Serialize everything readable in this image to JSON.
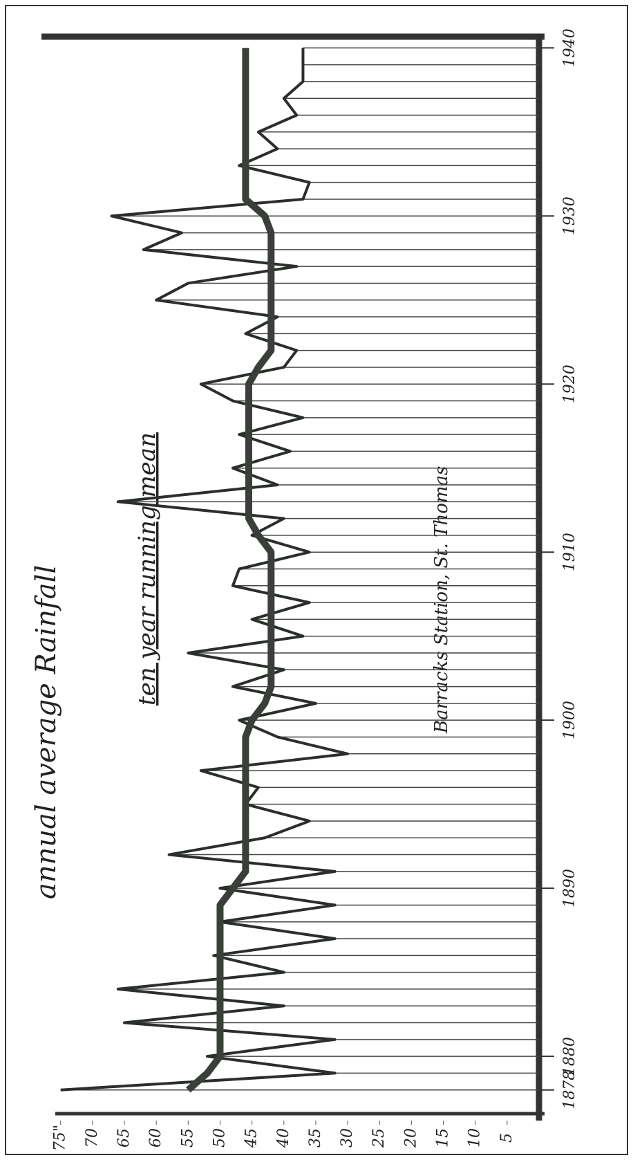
{
  "chart_data": {
    "type": "line",
    "title": "annual average Rainfall",
    "annotations": [
      "Barracks Station, St. Thomas"
    ],
    "x": [
      1878,
      1879,
      1880,
      1881,
      1882,
      1883,
      1884,
      1885,
      1886,
      1887,
      1888,
      1889,
      1890,
      1891,
      1892,
      1893,
      1894,
      1895,
      1896,
      1897,
      1898,
      1899,
      1900,
      1901,
      1902,
      1903,
      1904,
      1905,
      1906,
      1907,
      1908,
      1909,
      1910,
      1911,
      1912,
      1913,
      1914,
      1915,
      1916,
      1917,
      1918,
      1919,
      1920,
      1921,
      1922,
      1923,
      1924,
      1925,
      1926,
      1927,
      1928,
      1929,
      1930,
      1931,
      1932,
      1933,
      1934,
      1935,
      1936,
      1937,
      1938,
      1939,
      1940
    ],
    "series": [
      {
        "color": "#2b2f2b",
        "values": [
          75,
          32,
          52,
          32,
          65,
          40,
          66,
          40,
          51,
          32,
          50,
          32,
          50,
          32,
          58,
          43,
          36,
          46,
          44,
          53,
          30,
          41,
          47,
          35,
          48,
          40,
          55,
          37,
          45,
          36,
          48,
          47,
          36,
          45,
          40,
          66,
          41,
          48,
          39,
          47,
          37,
          48,
          53,
          40,
          38,
          46,
          41,
          60,
          55,
          38,
          62,
          56,
          67,
          37,
          36,
          47,
          41,
          44,
          38,
          40,
          37,
          37,
          37
        ]
      },
      {
        "name": "ten year running mean",
        "color": "#3a3f3a",
        "values": [
          55,
          52,
          50,
          50,
          50,
          50,
          50,
          50,
          50,
          50,
          50,
          50,
          48,
          46,
          46,
          46,
          46,
          46,
          46,
          46,
          46,
          46,
          45,
          43,
          42,
          42,
          42,
          42,
          42,
          42,
          42,
          42,
          42,
          44,
          45.5,
          45.5,
          45.5,
          45.5,
          45.5,
          45.5,
          45.5,
          45.5,
          45.5,
          44,
          42,
          42,
          42,
          42,
          42,
          42,
          42,
          42,
          43,
          46,
          46,
          46,
          46,
          46,
          46,
          46,
          46,
          46,
          46
        ]
      }
    ],
    "ylim": [
      0,
      78
    ],
    "yticks": [
      {
        "value": 75,
        "label": "75\""
      },
      70,
      65,
      60,
      55,
      50,
      45,
      40,
      35,
      30,
      25,
      20,
      15,
      10,
      5
    ],
    "xlim": [
      1877,
      1941
    ],
    "xticks": [
      1878,
      1880,
      1890,
      1900,
      1910,
      1920,
      1930,
      1940
    ]
  }
}
